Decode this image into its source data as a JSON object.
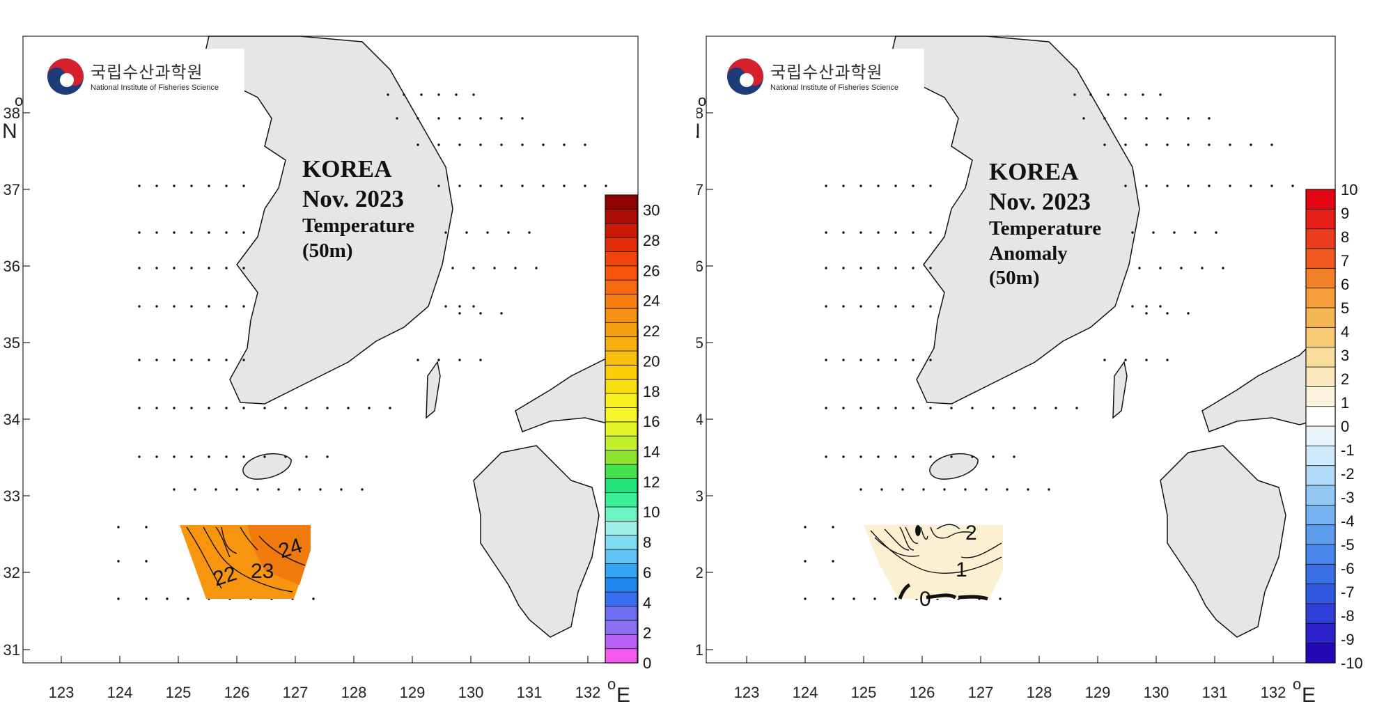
{
  "logo": {
    "korean": "국립수산과학원",
    "english": "National Institute of Fisheries Science"
  },
  "colors": {
    "land": "#e6e6e6",
    "coast": "#111111",
    "station_dot": "#111111"
  },
  "axes": {
    "lon_ticks": [
      "123",
      "124",
      "125",
      "126",
      "127",
      "128",
      "129",
      "130",
      "131",
      "132"
    ],
    "lat_ticks": [
      "31",
      "32",
      "33",
      "34",
      "35",
      "36",
      "37",
      "38"
    ],
    "lon_unit": "E",
    "lat_unit": "N",
    "degree_mark": "o"
  },
  "panels": [
    {
      "title_lines": [
        "KOREA",
        "Nov. 2023",
        "Temperature",
        "(50m)"
      ],
      "colorbar": {
        "labels": [
          "30",
          "28",
          "26",
          "24",
          "22",
          "20",
          "18",
          "16",
          "14",
          "12",
          "10",
          "8",
          "6",
          "4",
          "2",
          "0"
        ],
        "range": [
          0,
          31
        ],
        "colors": [
          "#f25bee",
          "#b860f6",
          "#8a6ff4",
          "#6b6ff0",
          "#3a6ef0",
          "#1f88f2",
          "#35a6f5",
          "#5cc4f5",
          "#7fdcf2",
          "#9defe7",
          "#6ff5c4",
          "#3cf09a",
          "#22e07a",
          "#46e24e",
          "#8fe12f",
          "#c2ee2a",
          "#e3f529",
          "#f4f52a",
          "#f7ee1e",
          "#f7de0d",
          "#fbcd07",
          "#f8be0c",
          "#f6ae11",
          "#f69f13",
          "#f79013",
          "#f77e10",
          "#f86a0e",
          "#f7560b",
          "#f2430b",
          "#e02d09",
          "#c81a06",
          "#ad0c05",
          "#8f0202"
        ]
      },
      "contour_labels": [
        "22",
        "23",
        "24"
      ],
      "field": {
        "fill": "#f7960e",
        "fill_right": "#f07a0c"
      }
    },
    {
      "title_lines": [
        "KOREA",
        "Nov. 2023",
        "Temperature",
        "Anomaly",
        "(50m)"
      ],
      "colorbar": {
        "labels": [
          "10",
          "9",
          "8",
          "7",
          "6",
          "5",
          "4",
          "3",
          "2",
          "1",
          "0",
          "-1",
          "-2",
          "-3",
          "-4",
          "-5",
          "-6",
          "-7",
          "-8",
          "-9",
          "-10"
        ],
        "range": [
          -10,
          10
        ],
        "colors": [
          "#2607b4",
          "#2d21cc",
          "#2f3fd8",
          "#3158e0",
          "#3a70e6",
          "#4a87ea",
          "#5c9dee",
          "#76b3f2",
          "#93c8f5",
          "#b1dbf8",
          "#cfeafa",
          "#e9f5fb",
          "#ffffff",
          "#fdf3dc",
          "#fbe8bc",
          "#fadc9c",
          "#f8cb77",
          "#f6b656",
          "#f49d3a",
          "#f28028",
          "#ef5a20",
          "#ec3c1c",
          "#e81f17",
          "#e30613"
        ]
      },
      "contour_labels": [
        "2",
        "1",
        "0"
      ],
      "field": {
        "fill": "#fbf0d2",
        "fill_right": "#f8e6bd"
      }
    }
  ]
}
